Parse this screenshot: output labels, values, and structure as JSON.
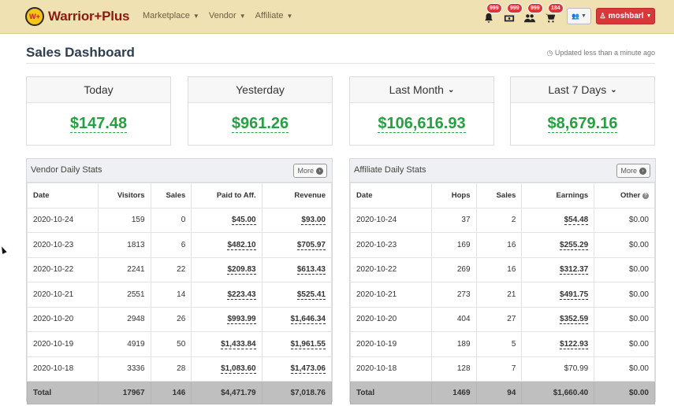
{
  "nav": {
    "logo_badge": "W+",
    "logo_text": "Warrior+Plus",
    "menu": [
      {
        "label": "Marketplace"
      },
      {
        "label": "Vendor"
      },
      {
        "label": "Affiliate"
      }
    ],
    "badges": {
      "bell": "999",
      "money": "999",
      "users": "999",
      "cart": "184"
    },
    "user_label": "moshbarl"
  },
  "header": {
    "title": "Sales Dashboard",
    "updated": "Updated less than a minute ago"
  },
  "cards": [
    {
      "label": "Today",
      "value": "$147.48"
    },
    {
      "label": "Yesterday",
      "value": "$961.26"
    },
    {
      "label": "Last Month",
      "value": "$106,616.93"
    },
    {
      "label": "Last 7 Days",
      "value": "$8,679.16"
    }
  ],
  "vendor": {
    "title": "Vendor Daily Stats",
    "more": "More",
    "columns": [
      "Date",
      "Visitors",
      "Sales",
      "Paid to Aff.",
      "Revenue"
    ],
    "rows": [
      [
        "2020-10-24",
        "159",
        "0",
        "$45.00",
        "$93.00"
      ],
      [
        "2020-10-23",
        "1813",
        "6",
        "$482.10",
        "$705.97"
      ],
      [
        "2020-10-22",
        "2241",
        "22",
        "$209.83",
        "$613.43"
      ],
      [
        "2020-10-21",
        "2551",
        "14",
        "$223.43",
        "$525.41"
      ],
      [
        "2020-10-20",
        "2948",
        "26",
        "$993.99",
        "$1,646.34"
      ],
      [
        "2020-10-19",
        "4919",
        "50",
        "$1,433.84",
        "$1,961.55"
      ],
      [
        "2020-10-18",
        "3336",
        "28",
        "$1,083.60",
        "$1,473.06"
      ]
    ],
    "total": [
      "Total",
      "17967",
      "146",
      "$4,471.79",
      "$7,018.76"
    ]
  },
  "affiliate": {
    "title": "Affiliate Daily Stats",
    "more": "More",
    "columns": [
      "Date",
      "Hops",
      "Sales",
      "Earnings",
      "Other"
    ],
    "rows": [
      [
        "2020-10-24",
        "37",
        "2",
        "$54.48",
        "$0.00"
      ],
      [
        "2020-10-23",
        "169",
        "16",
        "$255.29",
        "$0.00"
      ],
      [
        "2020-10-22",
        "269",
        "16",
        "$312.37",
        "$0.00"
      ],
      [
        "2020-10-21",
        "273",
        "21",
        "$491.75",
        "$0.00"
      ],
      [
        "2020-10-20",
        "404",
        "27",
        "$352.59",
        "$0.00"
      ],
      [
        "2020-10-19",
        "189",
        "5",
        "$122.93",
        "$0.00"
      ],
      [
        "2020-10-18",
        "128",
        "7",
        "$70.99",
        "$0.00"
      ]
    ],
    "total": [
      "Total",
      "1469",
      "94",
      "$1,660.40",
      "$0.00"
    ]
  }
}
